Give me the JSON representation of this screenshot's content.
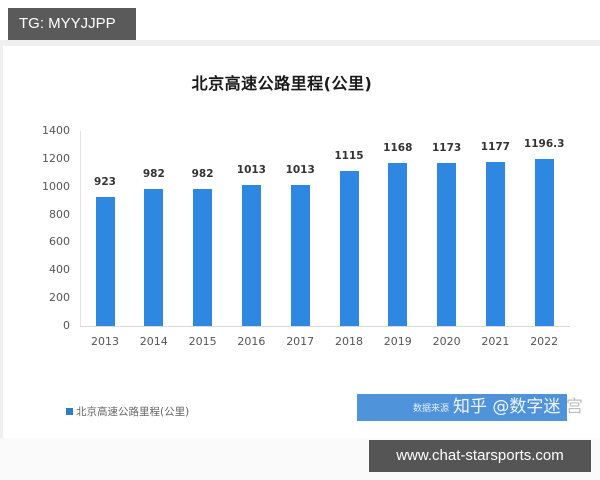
{
  "overlay": {
    "tg_badge": "TG: MYYJJPP",
    "site_badge": "www.chat-starsports.com"
  },
  "chart_data": {
    "type": "bar",
    "title": "北京高速公路里程(公里)",
    "categories": [
      "2013",
      "2014",
      "2015",
      "2016",
      "2017",
      "2018",
      "2019",
      "2020",
      "2021",
      "2022"
    ],
    "series": [
      {
        "name": "北京高速公路里程(公里)",
        "values": [
          923,
          982,
          982,
          1013,
          1013,
          1115,
          1168,
          1173,
          1177,
          1196.3
        ],
        "labels": [
          "923",
          "982",
          "982",
          "1013",
          "1013",
          "1115",
          "1168",
          "1173",
          "1177",
          "1196.3"
        ],
        "color": "#2e88e2"
      }
    ],
    "xlabel": "",
    "ylabel": "",
    "ylim": [
      0,
      1400
    ],
    "yticks": [
      "0",
      "200",
      "400",
      "600",
      "800",
      "1000",
      "1200",
      "1400"
    ],
    "grid": false,
    "legend_position": "bottom-left",
    "data_labels": true
  },
  "source_box": {
    "prefix": "数据来源",
    "watermark": "知乎 @数字迷",
    "watermark_tail": "宫"
  }
}
